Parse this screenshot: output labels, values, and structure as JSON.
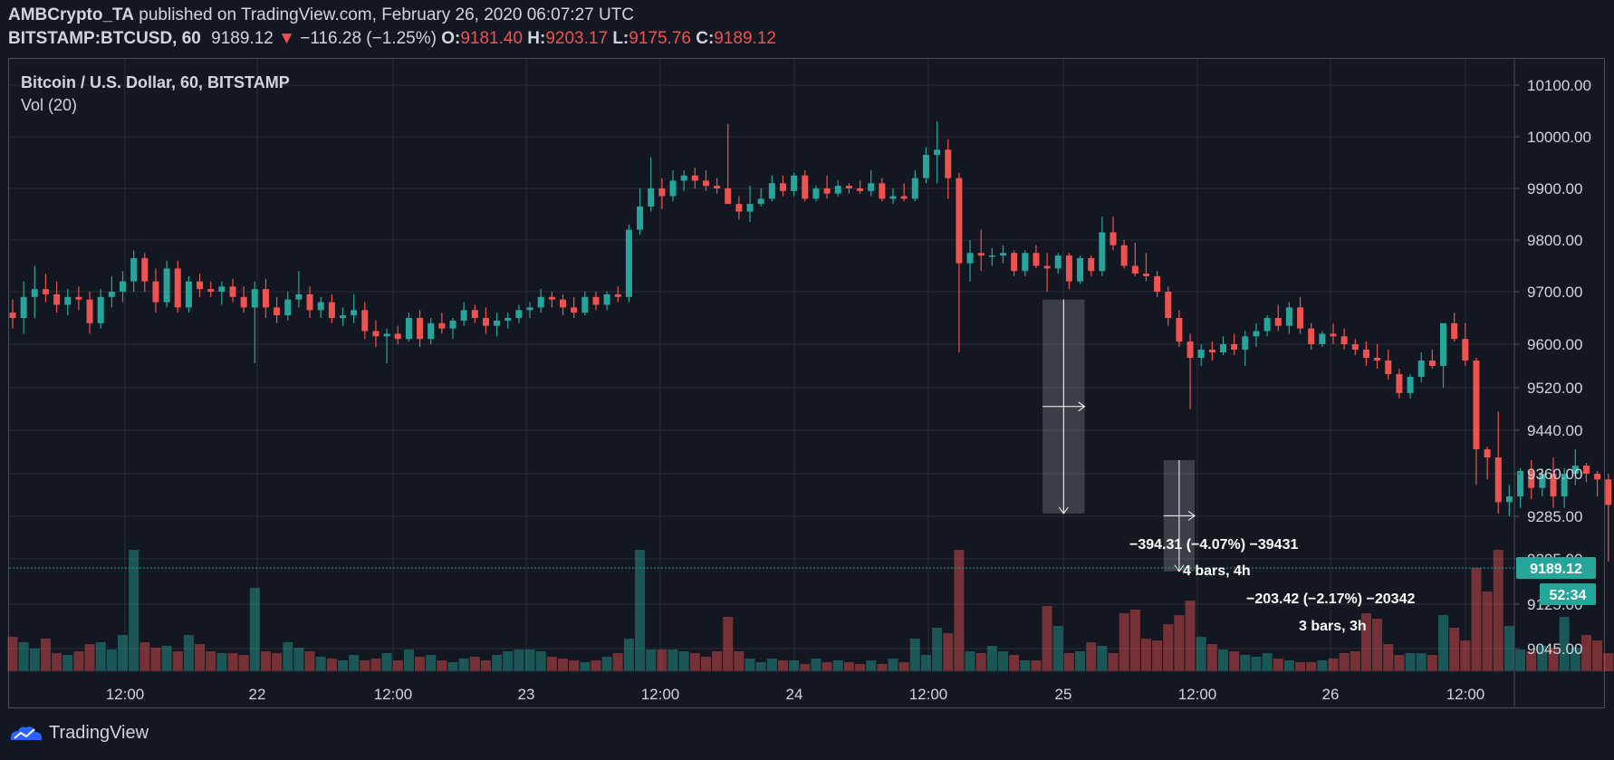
{
  "header": {
    "author": "AMBCrypto_TA",
    "published_text": "published on TradingView.com, February 26, 2020 06:07:27 UTC",
    "symbol": "BITSTAMP:BTCUSD, 60",
    "last": "9189.12",
    "change": "−116.28 (−1.25%)",
    "o_label": "O:",
    "o_value": "9181.40",
    "h_label": "H:",
    "h_value": "9203.17",
    "l_label": "L:",
    "l_value": "9175.76",
    "c_label": "C:",
    "c_value": "9189.12"
  },
  "legend": {
    "title": "Bitcoin / U.S. Dollar, 60, BITSTAMP",
    "volume": "Vol (20)"
  },
  "price_badge": "9189.12",
  "countdown": "52:34",
  "measurements": [
    {
      "change": "−394.31 (−4.07%) −39431",
      "bars": "4 bars, 4h"
    },
    {
      "change": "−203.42 (−2.17%) −20342",
      "bars": "3 bars, 3h"
    }
  ],
  "footer": {
    "brand": "TradingView"
  },
  "colors": {
    "up": "#26a69a",
    "down": "#ef5350",
    "background": "#131722",
    "grid": "#2a2e39"
  },
  "chart_data": {
    "type": "candlestick",
    "title": "Bitcoin / U.S. Dollar, 60, BITSTAMP",
    "y_ticks": [
      "10100.00",
      "10000.00",
      "9900.00",
      "9800.00",
      "9700.00",
      "9600.00",
      "9520.00",
      "9440.00",
      "9360.00",
      "9285.00",
      "9205.00",
      "9125.00",
      "9045.00"
    ],
    "x_ticks": [
      "12:00",
      "22",
      "12:00",
      "23",
      "12:00",
      "24",
      "12:00",
      "25",
      "12:00",
      "26",
      "12:00"
    ],
    "ylim": [
      9000,
      10170
    ],
    "grid": true,
    "candles": [
      {
        "o": 9660,
        "h": 9685,
        "l": 9630,
        "c": 9650,
        "v": 38
      },
      {
        "o": 9650,
        "h": 9720,
        "l": 9620,
        "c": 9690,
        "v": 32
      },
      {
        "o": 9690,
        "h": 9750,
        "l": 9650,
        "c": 9705,
        "v": 25
      },
      {
        "o": 9705,
        "h": 9735,
        "l": 9680,
        "c": 9695,
        "v": 36
      },
      {
        "o": 9695,
        "h": 9720,
        "l": 9660,
        "c": 9675,
        "v": 20
      },
      {
        "o": 9675,
        "h": 9705,
        "l": 9655,
        "c": 9690,
        "v": 18
      },
      {
        "o": 9690,
        "h": 9710,
        "l": 9665,
        "c": 9685,
        "v": 22
      },
      {
        "o": 9685,
        "h": 9700,
        "l": 9620,
        "c": 9640,
        "v": 30
      },
      {
        "o": 9640,
        "h": 9705,
        "l": 9630,
        "c": 9690,
        "v": 32
      },
      {
        "o": 9690,
        "h": 9730,
        "l": 9670,
        "c": 9700,
        "v": 24
      },
      {
        "o": 9700,
        "h": 9740,
        "l": 9680,
        "c": 9720,
        "v": 40
      },
      {
        "o": 9720,
        "h": 9780,
        "l": 9700,
        "c": 9765,
        "v": 134
      },
      {
        "o": 9765,
        "h": 9775,
        "l": 9700,
        "c": 9720,
        "v": 32
      },
      {
        "o": 9720,
        "h": 9745,
        "l": 9660,
        "c": 9680,
        "v": 26
      },
      {
        "o": 9680,
        "h": 9760,
        "l": 9670,
        "c": 9745,
        "v": 28
      },
      {
        "o": 9745,
        "h": 9760,
        "l": 9660,
        "c": 9670,
        "v": 22
      },
      {
        "o": 9670,
        "h": 9730,
        "l": 9660,
        "c": 9720,
        "v": 40
      },
      {
        "o": 9720,
        "h": 9735,
        "l": 9690,
        "c": 9705,
        "v": 30
      },
      {
        "o": 9705,
        "h": 9720,
        "l": 9690,
        "c": 9700,
        "v": 22
      },
      {
        "o": 9700,
        "h": 9720,
        "l": 9675,
        "c": 9710,
        "v": 20
      },
      {
        "o": 9710,
        "h": 9725,
        "l": 9680,
        "c": 9690,
        "v": 20
      },
      {
        "o": 9690,
        "h": 9710,
        "l": 9660,
        "c": 9670,
        "v": 18
      },
      {
        "o": 9670,
        "h": 9720,
        "l": 9565,
        "c": 9705,
        "v": 92
      },
      {
        "o": 9705,
        "h": 9725,
        "l": 9650,
        "c": 9670,
        "v": 22
      },
      {
        "o": 9670,
        "h": 9690,
        "l": 9640,
        "c": 9655,
        "v": 20
      },
      {
        "o": 9655,
        "h": 9700,
        "l": 9645,
        "c": 9685,
        "v": 32
      },
      {
        "o": 9685,
        "h": 9740,
        "l": 9670,
        "c": 9695,
        "v": 26
      },
      {
        "o": 9695,
        "h": 9710,
        "l": 9650,
        "c": 9665,
        "v": 22
      },
      {
        "o": 9665,
        "h": 9690,
        "l": 9650,
        "c": 9680,
        "v": 16
      },
      {
        "o": 9680,
        "h": 9695,
        "l": 9640,
        "c": 9650,
        "v": 14
      },
      {
        "o": 9650,
        "h": 9670,
        "l": 9635,
        "c": 9655,
        "v": 12
      },
      {
        "o": 9655,
        "h": 9695,
        "l": 9640,
        "c": 9665,
        "v": 18
      },
      {
        "o": 9665,
        "h": 9680,
        "l": 9610,
        "c": 9625,
        "v": 12
      },
      {
        "o": 9625,
        "h": 9645,
        "l": 9595,
        "c": 9615,
        "v": 14
      },
      {
        "o": 9615,
        "h": 9630,
        "l": 9565,
        "c": 9620,
        "v": 20
      },
      {
        "o": 9620,
        "h": 9635,
        "l": 9600,
        "c": 9610,
        "v": 12
      },
      {
        "o": 9610,
        "h": 9660,
        "l": 9605,
        "c": 9650,
        "v": 24
      },
      {
        "o": 9650,
        "h": 9665,
        "l": 9595,
        "c": 9610,
        "v": 16
      },
      {
        "o": 9610,
        "h": 9650,
        "l": 9600,
        "c": 9640,
        "v": 18
      },
      {
        "o": 9640,
        "h": 9660,
        "l": 9620,
        "c": 9630,
        "v": 12
      },
      {
        "o": 9630,
        "h": 9650,
        "l": 9610,
        "c": 9645,
        "v": 10
      },
      {
        "o": 9645,
        "h": 9680,
        "l": 9635,
        "c": 9665,
        "v": 14
      },
      {
        "o": 9665,
        "h": 9675,
        "l": 9640,
        "c": 9650,
        "v": 16
      },
      {
        "o": 9650,
        "h": 9670,
        "l": 9620,
        "c": 9635,
        "v": 12
      },
      {
        "o": 9635,
        "h": 9660,
        "l": 9615,
        "c": 9645,
        "v": 18
      },
      {
        "o": 9645,
        "h": 9660,
        "l": 9630,
        "c": 9650,
        "v": 22
      },
      {
        "o": 9650,
        "h": 9675,
        "l": 9640,
        "c": 9665,
        "v": 24
      },
      {
        "o": 9665,
        "h": 9680,
        "l": 9650,
        "c": 9670,
        "v": 24
      },
      {
        "o": 9670,
        "h": 9705,
        "l": 9660,
        "c": 9690,
        "v": 22
      },
      {
        "o": 9690,
        "h": 9700,
        "l": 9670,
        "c": 9685,
        "v": 16
      },
      {
        "o": 9685,
        "h": 9695,
        "l": 9655,
        "c": 9670,
        "v": 14
      },
      {
        "o": 9670,
        "h": 9690,
        "l": 9650,
        "c": 9660,
        "v": 12
      },
      {
        "o": 9660,
        "h": 9700,
        "l": 9655,
        "c": 9690,
        "v": 10
      },
      {
        "o": 9690,
        "h": 9700,
        "l": 9665,
        "c": 9675,
        "v": 12
      },
      {
        "o": 9675,
        "h": 9700,
        "l": 9665,
        "c": 9695,
        "v": 16
      },
      {
        "o": 9695,
        "h": 9710,
        "l": 9680,
        "c": 9690,
        "v": 20
      },
      {
        "o": 9690,
        "h": 9830,
        "l": 9680,
        "c": 9820,
        "v": 36
      },
      {
        "o": 9820,
        "h": 9900,
        "l": 9810,
        "c": 9865,
        "v": 134
      },
      {
        "o": 9865,
        "h": 9960,
        "l": 9855,
        "c": 9900,
        "v": 24
      },
      {
        "o": 9900,
        "h": 9920,
        "l": 9860,
        "c": 9885,
        "v": 24
      },
      {
        "o": 9885,
        "h": 9935,
        "l": 9875,
        "c": 9915,
        "v": 24
      },
      {
        "o": 9915,
        "h": 9935,
        "l": 9895,
        "c": 9925,
        "v": 22
      },
      {
        "o": 9925,
        "h": 9940,
        "l": 9900,
        "c": 9915,
        "v": 20
      },
      {
        "o": 9915,
        "h": 9935,
        "l": 9895,
        "c": 9905,
        "v": 16
      },
      {
        "o": 9905,
        "h": 9920,
        "l": 9890,
        "c": 9900,
        "v": 22
      },
      {
        "o": 9900,
        "h": 10025,
        "l": 9870,
        "c": 9870,
        "v": 60
      },
      {
        "o": 9870,
        "h": 9885,
        "l": 9840,
        "c": 9855,
        "v": 22
      },
      {
        "o": 9855,
        "h": 9905,
        "l": 9835,
        "c": 9870,
        "v": 14
      },
      {
        "o": 9870,
        "h": 9900,
        "l": 9865,
        "c": 9880,
        "v": 10
      },
      {
        "o": 9880,
        "h": 9925,
        "l": 9875,
        "c": 9910,
        "v": 14
      },
      {
        "o": 9910,
        "h": 9925,
        "l": 9885,
        "c": 9895,
        "v": 12
      },
      {
        "o": 9895,
        "h": 9930,
        "l": 9885,
        "c": 9925,
        "v": 12
      },
      {
        "o": 9925,
        "h": 9935,
        "l": 9875,
        "c": 9880,
        "v": 8
      },
      {
        "o": 9880,
        "h": 9905,
        "l": 9875,
        "c": 9900,
        "v": 14
      },
      {
        "o": 9900,
        "h": 9925,
        "l": 9880,
        "c": 9890,
        "v": 10
      },
      {
        "o": 9890,
        "h": 9915,
        "l": 9885,
        "c": 9905,
        "v": 12
      },
      {
        "o": 9905,
        "h": 9910,
        "l": 9890,
        "c": 9900,
        "v": 10
      },
      {
        "o": 9900,
        "h": 9915,
        "l": 9890,
        "c": 9895,
        "v": 8
      },
      {
        "o": 9895,
        "h": 9935,
        "l": 9885,
        "c": 9910,
        "v": 12
      },
      {
        "o": 9910,
        "h": 9920,
        "l": 9875,
        "c": 9880,
        "v": 8
      },
      {
        "o": 9880,
        "h": 9900,
        "l": 9870,
        "c": 9885,
        "v": 14
      },
      {
        "o": 9885,
        "h": 9910,
        "l": 9875,
        "c": 9880,
        "v": 10
      },
      {
        "o": 9880,
        "h": 9935,
        "l": 9875,
        "c": 9920,
        "v": 36
      },
      {
        "o": 9920,
        "h": 9980,
        "l": 9910,
        "c": 9965,
        "v": 18
      },
      {
        "o": 9965,
        "h": 10030,
        "l": 9910,
        "c": 9975,
        "v": 48
      },
      {
        "o": 9975,
        "h": 9995,
        "l": 9880,
        "c": 9920,
        "v": 42
      },
      {
        "o": 9920,
        "h": 9930,
        "l": 9585,
        "c": 9755,
        "v": 134
      },
      {
        "o": 9755,
        "h": 9800,
        "l": 9720,
        "c": 9775,
        "v": 22
      },
      {
        "o": 9775,
        "h": 9820,
        "l": 9740,
        "c": 9770,
        "v": 20
      },
      {
        "o": 9770,
        "h": 9785,
        "l": 9750,
        "c": 9770,
        "v": 28
      },
      {
        "o": 9770,
        "h": 9790,
        "l": 9755,
        "c": 9775,
        "v": 22
      },
      {
        "o": 9775,
        "h": 9780,
        "l": 9730,
        "c": 9740,
        "v": 18
      },
      {
        "o": 9740,
        "h": 9780,
        "l": 9730,
        "c": 9775,
        "v": 12
      },
      {
        "o": 9775,
        "h": 9790,
        "l": 9745,
        "c": 9750,
        "v": 12
      },
      {
        "o": 9750,
        "h": 9775,
        "l": 9700,
        "c": 9745,
        "v": 72
      },
      {
        "o": 9745,
        "h": 9775,
        "l": 9735,
        "c": 9770,
        "v": 50
      },
      {
        "o": 9770,
        "h": 9775,
        "l": 9705,
        "c": 9720,
        "v": 20
      },
      {
        "o": 9720,
        "h": 9770,
        "l": 9715,
        "c": 9765,
        "v": 22
      },
      {
        "o": 9765,
        "h": 9770,
        "l": 9730,
        "c": 9740,
        "v": 32
      },
      {
        "o": 9740,
        "h": 9845,
        "l": 9730,
        "c": 9815,
        "v": 28
      },
      {
        "o": 9815,
        "h": 9845,
        "l": 9780,
        "c": 9790,
        "v": 20
      },
      {
        "o": 9790,
        "h": 9800,
        "l": 9745,
        "c": 9750,
        "v": 64
      },
      {
        "o": 9750,
        "h": 9795,
        "l": 9730,
        "c": 9735,
        "v": 68
      },
      {
        "o": 9735,
        "h": 9775,
        "l": 9720,
        "c": 9730,
        "v": 36
      },
      {
        "o": 9730,
        "h": 9740,
        "l": 9690,
        "c": 9700,
        "v": 34
      },
      {
        "o": 9700,
        "h": 9710,
        "l": 9635,
        "c": 9650,
        "v": 52
      },
      {
        "o": 9650,
        "h": 9665,
        "l": 9595,
        "c": 9605,
        "v": 62
      },
      {
        "o": 9605,
        "h": 9620,
        "l": 9480,
        "c": 9575,
        "v": 78
      },
      {
        "o": 9575,
        "h": 9600,
        "l": 9560,
        "c": 9590,
        "v": 38
      },
      {
        "o": 9590,
        "h": 9605,
        "l": 9570,
        "c": 9585,
        "v": 30
      },
      {
        "o": 9585,
        "h": 9615,
        "l": 9580,
        "c": 9600,
        "v": 24
      },
      {
        "o": 9600,
        "h": 9620,
        "l": 9580,
        "c": 9590,
        "v": 22
      },
      {
        "o": 9590,
        "h": 9625,
        "l": 9560,
        "c": 9615,
        "v": 18
      },
      {
        "o": 9615,
        "h": 9640,
        "l": 9595,
        "c": 9625,
        "v": 16
      },
      {
        "o": 9625,
        "h": 9655,
        "l": 9615,
        "c": 9650,
        "v": 20
      },
      {
        "o": 9650,
        "h": 9675,
        "l": 9625,
        "c": 9635,
        "v": 14
      },
      {
        "o": 9635,
        "h": 9680,
        "l": 9620,
        "c": 9670,
        "v": 12
      },
      {
        "o": 9670,
        "h": 9690,
        "l": 9620,
        "c": 9630,
        "v": 10
      },
      {
        "o": 9630,
        "h": 9640,
        "l": 9590,
        "c": 9600,
        "v": 10
      },
      {
        "o": 9600,
        "h": 9625,
        "l": 9595,
        "c": 9620,
        "v": 12
      },
      {
        "o": 9620,
        "h": 9640,
        "l": 9600,
        "c": 9615,
        "v": 14
      },
      {
        "o": 9615,
        "h": 9630,
        "l": 9590,
        "c": 9600,
        "v": 20
      },
      {
        "o": 9600,
        "h": 9610,
        "l": 9580,
        "c": 9590,
        "v": 22
      },
      {
        "o": 9590,
        "h": 9605,
        "l": 9560,
        "c": 9575,
        "v": 64
      },
      {
        "o": 9575,
        "h": 9600,
        "l": 9555,
        "c": 9570,
        "v": 58
      },
      {
        "o": 9570,
        "h": 9590,
        "l": 9535,
        "c": 9545,
        "v": 30
      },
      {
        "o": 9545,
        "h": 9555,
        "l": 9500,
        "c": 9510,
        "v": 18
      },
      {
        "o": 9510,
        "h": 9545,
        "l": 9500,
        "c": 9540,
        "v": 20
      },
      {
        "o": 9540,
        "h": 9585,
        "l": 9530,
        "c": 9570,
        "v": 20
      },
      {
        "o": 9570,
        "h": 9590,
        "l": 9555,
        "c": 9560,
        "v": 18
      },
      {
        "o": 9560,
        "h": 9640,
        "l": 9520,
        "c": 9640,
        "v": 62
      },
      {
        "o": 9640,
        "h": 9660,
        "l": 9605,
        "c": 9610,
        "v": 48
      },
      {
        "o": 9610,
        "h": 9640,
        "l": 9560,
        "c": 9570,
        "v": 34
      },
      {
        "o": 9570,
        "h": 9575,
        "l": 9340,
        "c": 9405,
        "v": 114
      },
      {
        "o": 9405,
        "h": 9410,
        "l": 9350,
        "c": 9390,
        "v": 88
      },
      {
        "o": 9390,
        "h": 9475,
        "l": 9290,
        "c": 9310,
        "v": 134
      },
      {
        "o": 9310,
        "h": 9340,
        "l": 9285,
        "c": 9320,
        "v": 50
      },
      {
        "o": 9320,
        "h": 9370,
        "l": 9300,
        "c": 9365,
        "v": 24
      },
      {
        "o": 9365,
        "h": 9385,
        "l": 9315,
        "c": 9335,
        "v": 22
      },
      {
        "o": 9335,
        "h": 9370,
        "l": 9320,
        "c": 9360,
        "v": 28
      },
      {
        "o": 9360,
        "h": 9390,
        "l": 9300,
        "c": 9320,
        "v": 26
      },
      {
        "o": 9320,
        "h": 9370,
        "l": 9300,
        "c": 9360,
        "v": 60
      },
      {
        "o": 9360,
        "h": 9405,
        "l": 9340,
        "c": 9375,
        "v": 26
      },
      {
        "o": 9375,
        "h": 9380,
        "l": 9345,
        "c": 9360,
        "v": 40
      },
      {
        "o": 9360,
        "h": 9365,
        "l": 9320,
        "c": 9350,
        "v": 34
      },
      {
        "o": 9350,
        "h": 9360,
        "l": 9200,
        "c": 9305,
        "v": 20
      },
      {
        "o": 9305,
        "h": 9315,
        "l": 9290,
        "c": 9300,
        "v": 14
      },
      {
        "o": 9300,
        "h": 9320,
        "l": 9210,
        "c": 9225,
        "v": 36
      },
      {
        "o": 9225,
        "h": 9245,
        "l": 9180,
        "c": 9195,
        "v": 46
      },
      {
        "o": 9195,
        "h": 9215,
        "l": 9170,
        "c": 9175,
        "v": 10
      },
      {
        "o": 9175,
        "h": 9195,
        "l": 9160,
        "c": 9185,
        "v": 8
      },
      {
        "o": 9185,
        "h": 9215,
        "l": 9170,
        "c": 9210,
        "v": 6
      },
      {
        "o": 9200,
        "h": 9220,
        "l": 9190,
        "c": 9195,
        "v": 4
      }
    ]
  }
}
